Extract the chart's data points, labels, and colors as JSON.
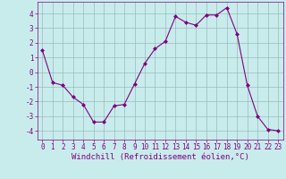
{
  "x": [
    0,
    1,
    2,
    3,
    4,
    5,
    6,
    7,
    8,
    9,
    10,
    11,
    12,
    13,
    14,
    15,
    16,
    17,
    18,
    19,
    20,
    21,
    22,
    23
  ],
  "y": [
    1.5,
    -0.7,
    -0.9,
    -1.7,
    -2.2,
    -3.4,
    -3.4,
    -2.3,
    -2.2,
    -0.8,
    0.6,
    1.6,
    2.1,
    3.8,
    3.4,
    3.2,
    3.9,
    3.9,
    4.4,
    2.6,
    -0.9,
    -3.0,
    -3.9,
    -4.0
  ],
  "line_color": "#800080",
  "marker_color": "#800080",
  "bg_color": "#c8ecec",
  "grid_color": "#99bbbb",
  "xlabel": "Windchill (Refroidissement éolien,°C)",
  "xlim": [
    -0.5,
    23.5
  ],
  "ylim": [
    -4.6,
    4.8
  ],
  "yticks": [
    -4,
    -3,
    -2,
    -1,
    0,
    1,
    2,
    3,
    4
  ],
  "xticks": [
    0,
    1,
    2,
    3,
    4,
    5,
    6,
    7,
    8,
    9,
    10,
    11,
    12,
    13,
    14,
    15,
    16,
    17,
    18,
    19,
    20,
    21,
    22,
    23
  ],
  "tick_fontsize": 5.5,
  "label_fontsize": 6.5
}
